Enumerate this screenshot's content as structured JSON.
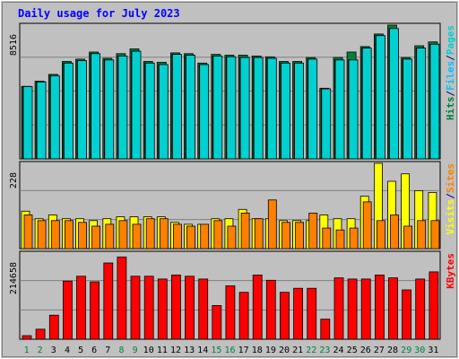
{
  "title": "Daily usage for July 2023",
  "colors": {
    "background": "#c0c0c0",
    "title": "#0000ff",
    "hits": "#008040",
    "files": "#00c0ff",
    "pages": "#00d0d0",
    "visits": "#ffff00",
    "sites": "#ff8000",
    "kbytes": "#ff0000",
    "weekend_day": "#008040",
    "weekday": "#000000"
  },
  "chart_data": [
    {
      "type": "bar",
      "panel": "top",
      "categories": [
        "1",
        "2",
        "3",
        "4",
        "5",
        "6",
        "7",
        "8",
        "9",
        "10",
        "11",
        "12",
        "13",
        "14",
        "15",
        "16",
        "17",
        "18",
        "19",
        "20",
        "21",
        "22",
        "23",
        "24",
        "25",
        "26",
        "27",
        "28",
        "29",
        "30",
        "31"
      ],
      "weekend_days": [
        "1",
        "2",
        "8",
        "9",
        "15",
        "16",
        "22",
        "23",
        "29",
        "30"
      ],
      "ymax_label": "8516",
      "ylim": [
        0,
        8516
      ],
      "legend": [
        {
          "text": "Hits",
          "color": "#008040"
        },
        {
          "text": "/",
          "color": "#000080"
        },
        {
          "text": "Files",
          "color": "#00c0ff"
        },
        {
          "text": "/",
          "color": "#000080"
        },
        {
          "text": "Pages",
          "color": "#00d0d0"
        }
      ],
      "series": [
        {
          "name": "Hits",
          "values": [
            4620,
            4950,
            5380,
            6200,
            6350,
            6800,
            6400,
            6700,
            7000,
            6200,
            6150,
            6750,
            6700,
            6100,
            6650,
            6600,
            6600,
            6550,
            6500,
            6200,
            6200,
            6450,
            4500,
            6450,
            6800,
            7150,
            7950,
            8516,
            6450,
            7200,
            7450
          ]
        },
        {
          "name": "Files",
          "values": [
            4600,
            4900,
            5300,
            6100,
            6250,
            6700,
            6300,
            6550,
            6850,
            6100,
            6000,
            6650,
            6600,
            6000,
            6550,
            6500,
            6450,
            6450,
            6400,
            6100,
            6100,
            6350,
            4450,
            6300,
            6300,
            7050,
            7850,
            8300,
            6350,
            7050,
            7300
          ]
        },
        {
          "name": "Pages",
          "values": [
            4600,
            4900,
            5300,
            6100,
            6250,
            6700,
            6300,
            6550,
            6850,
            6100,
            6000,
            6650,
            6600,
            6000,
            6550,
            6500,
            6450,
            6450,
            6400,
            6100,
            6100,
            6350,
            4450,
            6300,
            6300,
            7050,
            7850,
            8300,
            6350,
            7050,
            7300
          ]
        }
      ]
    },
    {
      "type": "bar",
      "panel": "middle",
      "ymax_label": "228",
      "ylim": [
        0,
        228
      ],
      "legend": [
        {
          "text": "Visits",
          "color": "#ffff00"
        },
        {
          "text": "/",
          "color": "#000080"
        },
        {
          "text": "Sites",
          "color": "#ff8000"
        }
      ],
      "series": [
        {
          "name": "Visits",
          "values": [
            100,
            80,
            90,
            80,
            80,
            75,
            80,
            85,
            85,
            85,
            85,
            70,
            65,
            65,
            80,
            80,
            105,
            80,
            80,
            75,
            75,
            75,
            90,
            80,
            80,
            140,
            228,
            180,
            200,
            155,
            150
          ]
        },
        {
          "name": "Sites",
          "values": [
            90,
            75,
            75,
            75,
            70,
            60,
            65,
            75,
            65,
            80,
            80,
            65,
            60,
            65,
            75,
            60,
            95,
            80,
            130,
            70,
            70,
            95,
            55,
            50,
            55,
            125,
            75,
            90,
            60,
            75,
            75
          ]
        }
      ]
    },
    {
      "type": "bar",
      "panel": "bottom",
      "ymax_label": "214658",
      "ylim": [
        0,
        214658
      ],
      "legend": [
        {
          "text": "KBytes",
          "color": "#ff0000"
        }
      ],
      "series": [
        {
          "name": "KBytes",
          "values": [
            9000,
            25000,
            60000,
            145000,
            157000,
            143000,
            190000,
            205000,
            157000,
            157000,
            150000,
            160000,
            157000,
            150000,
            84000,
            133000,
            117000,
            160000,
            147000,
            117000,
            127000,
            127000,
            50000,
            153000,
            150000,
            150000,
            160000,
            153000,
            123000,
            150000,
            168000
          ]
        }
      ]
    }
  ]
}
